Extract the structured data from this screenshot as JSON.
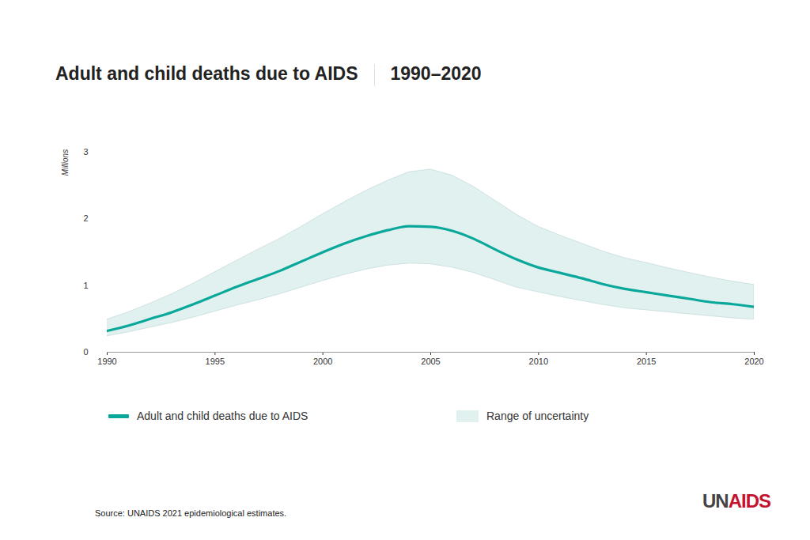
{
  "chart_data": {
    "type": "line",
    "title": "Adult and child deaths due to AIDS",
    "subtitle": "1990–2020",
    "ylabel": "Millions",
    "x": [
      1990,
      1991,
      1992,
      1993,
      1994,
      1995,
      1996,
      1997,
      1998,
      1999,
      2000,
      2001,
      2002,
      2003,
      2004,
      2005,
      2006,
      2007,
      2008,
      2009,
      2010,
      2011,
      2012,
      2013,
      2014,
      2015,
      2016,
      2017,
      2018,
      2019,
      2020
    ],
    "series": [
      {
        "name": "Adult and child deaths due to AIDS",
        "color": "#0aa89a",
        "values": [
          0.32,
          0.4,
          0.5,
          0.6,
          0.72,
          0.85,
          0.98,
          1.1,
          1.22,
          1.36,
          1.5,
          1.63,
          1.74,
          1.83,
          1.89,
          1.88,
          1.82,
          1.7,
          1.54,
          1.39,
          1.27,
          1.19,
          1.11,
          1.02,
          0.95,
          0.9,
          0.85,
          0.8,
          0.75,
          0.72,
          0.68
        ]
      }
    ],
    "uncertainty": {
      "name": "Range of uncertainty",
      "color": "#e0f1f0",
      "lower": [
        0.24,
        0.3,
        0.37,
        0.44,
        0.52,
        0.61,
        0.7,
        0.78,
        0.87,
        0.97,
        1.07,
        1.16,
        1.24,
        1.3,
        1.33,
        1.32,
        1.27,
        1.19,
        1.08,
        0.97,
        0.9,
        0.83,
        0.77,
        0.71,
        0.66,
        0.63,
        0.6,
        0.57,
        0.54,
        0.51,
        0.49
      ],
      "upper": [
        0.49,
        0.6,
        0.73,
        0.87,
        1.03,
        1.2,
        1.37,
        1.54,
        1.7,
        1.88,
        2.07,
        2.25,
        2.42,
        2.57,
        2.7,
        2.74,
        2.65,
        2.48,
        2.27,
        2.06,
        1.88,
        1.75,
        1.63,
        1.51,
        1.41,
        1.34,
        1.26,
        1.19,
        1.12,
        1.06,
        1.01
      ]
    },
    "xlim": [
      1990,
      2020
    ],
    "xticks": [
      1990,
      1995,
      2000,
      2005,
      2010,
      2015,
      2020
    ],
    "ylim": [
      0,
      3
    ],
    "yticks": [
      0,
      1,
      2,
      3
    ],
    "grid": false,
    "source": "Source: UNAIDS 2021 epidemiological estimates.",
    "logo": "UNAIDS"
  }
}
